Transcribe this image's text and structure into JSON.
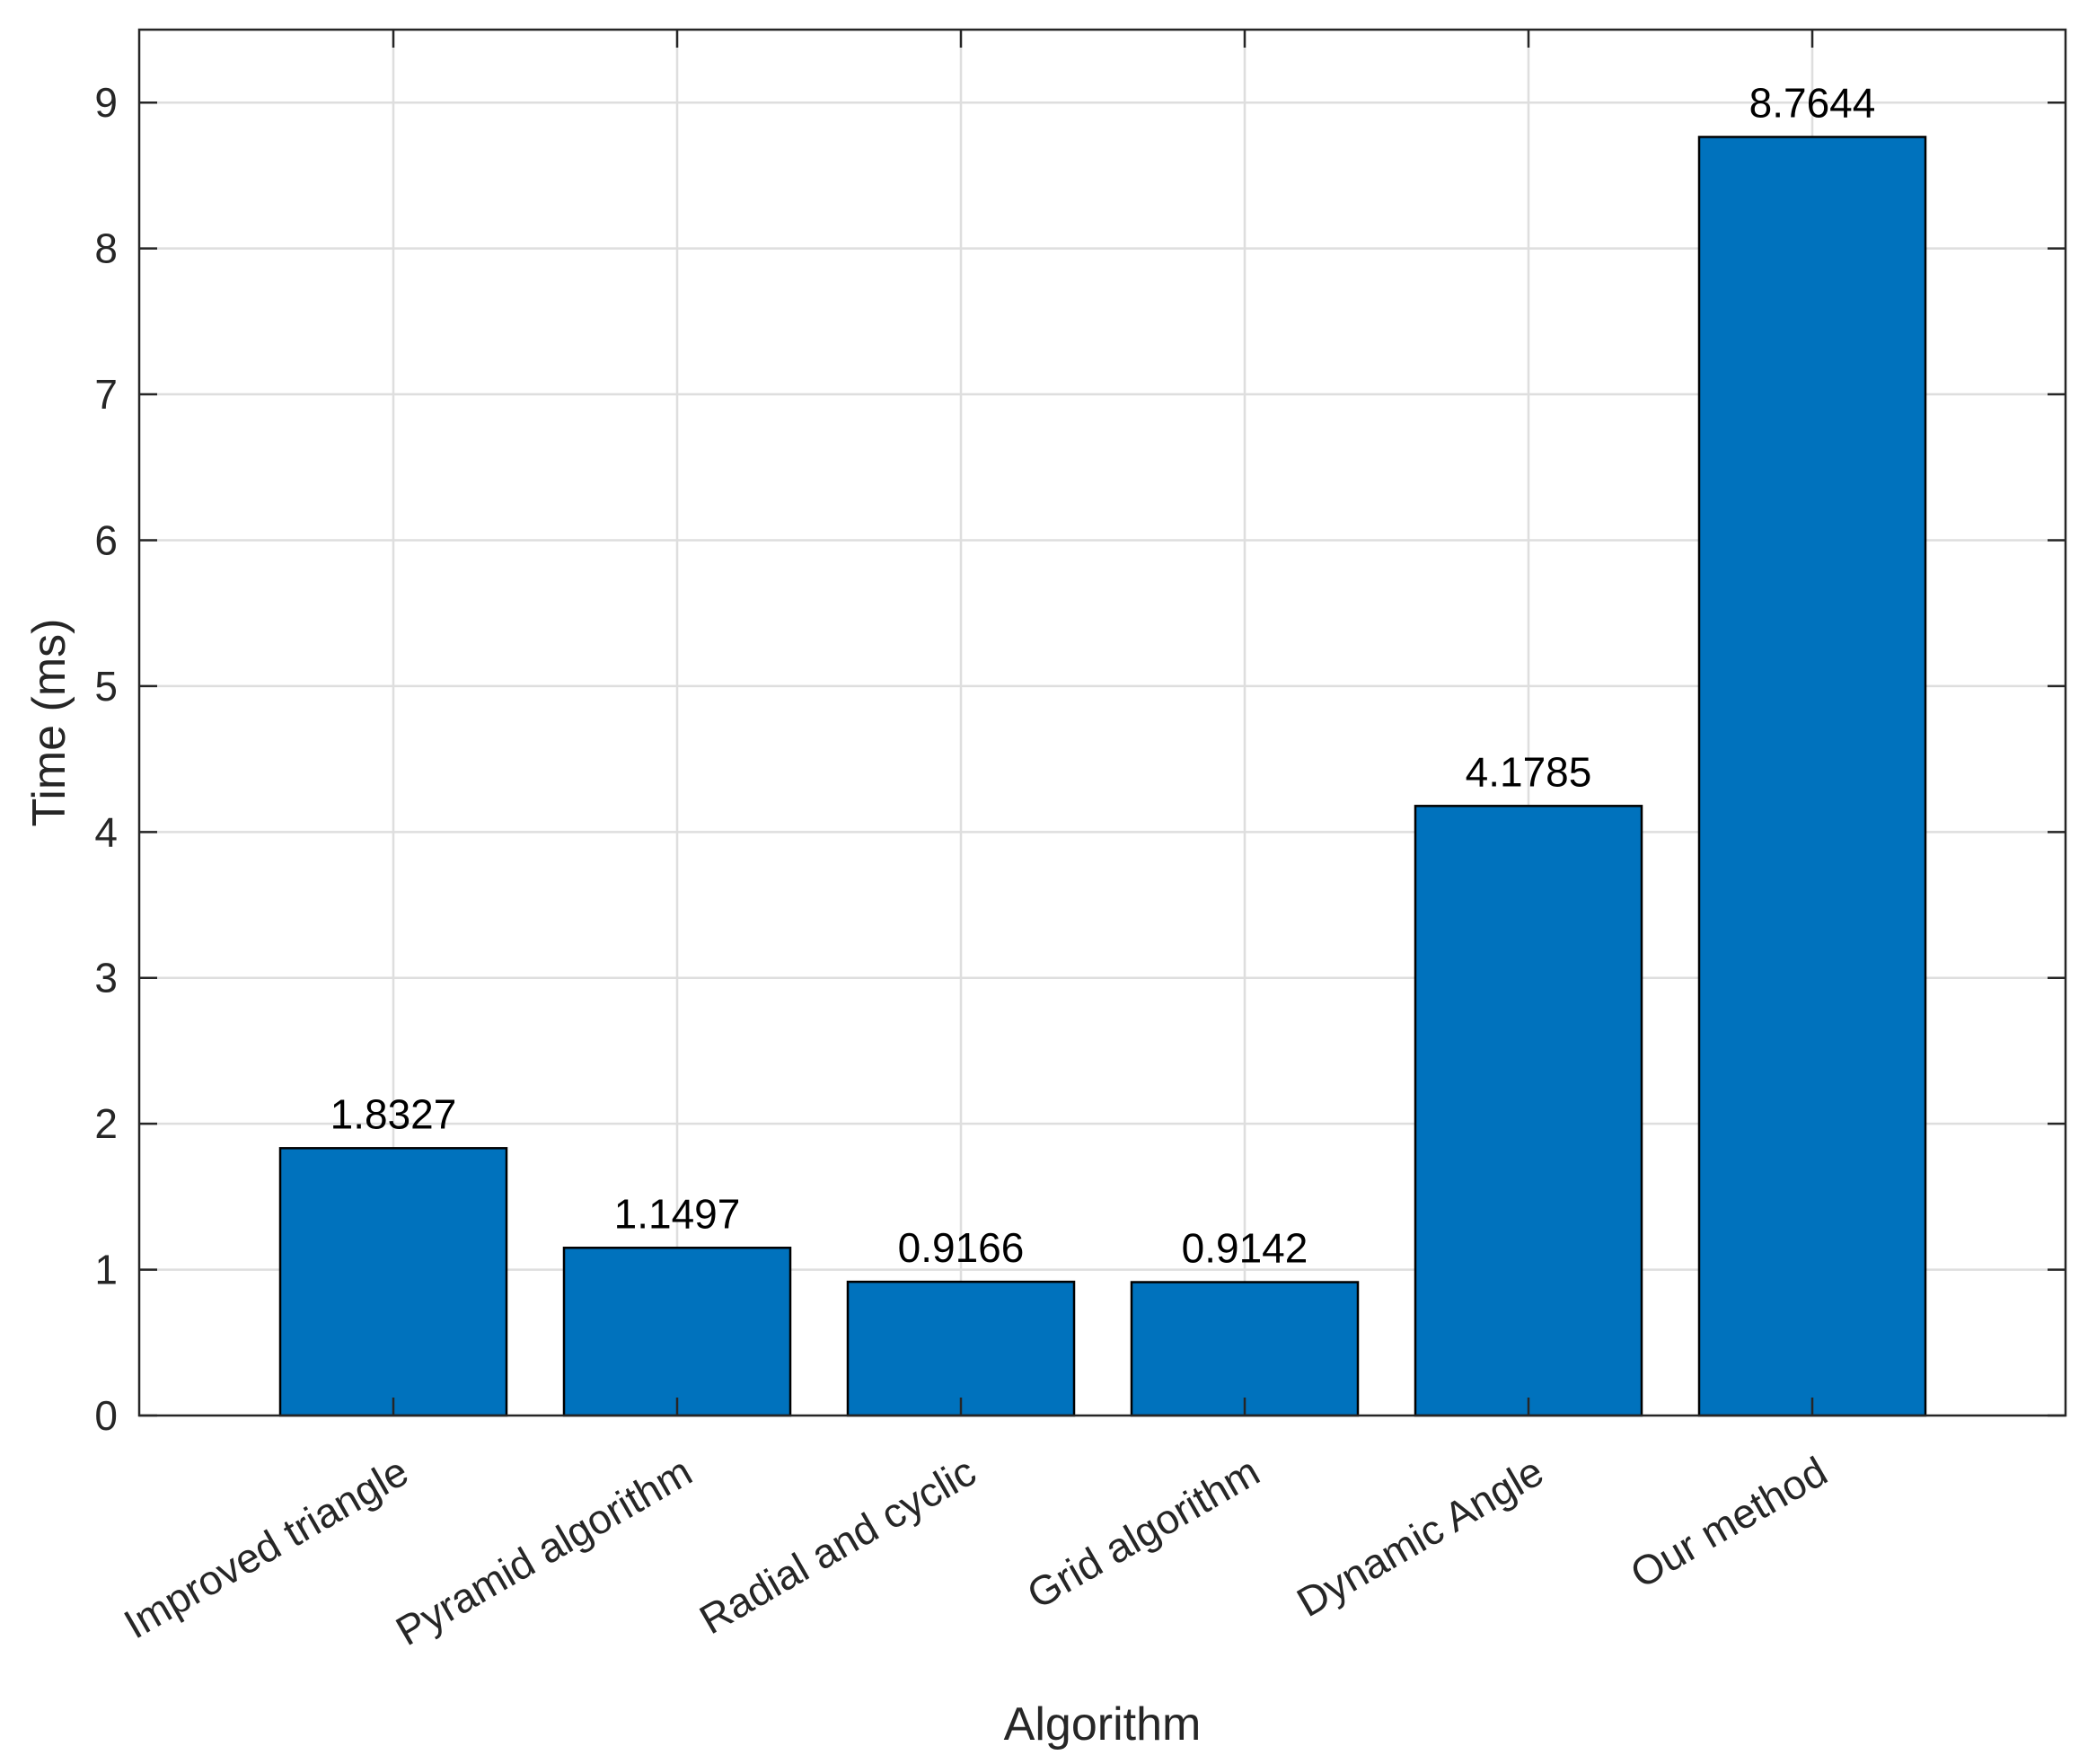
{
  "colors": {
    "bar_fill": "#0072BD",
    "bar_stroke": "#000000",
    "axis": "#262626",
    "grid": "#dedede",
    "background": "#ffffff"
  },
  "chart_data": {
    "type": "bar",
    "title": "",
    "xlabel": "Algorithm",
    "ylabel": "Time (ms)",
    "categories": [
      "Improved triangle",
      "Pyramid algorithm",
      "Radial and cyclic",
      "Grid algorithm",
      "Dynamic Angle",
      "Our method"
    ],
    "values": [
      1.8327,
      1.1497,
      0.9166,
      0.9142,
      4.1785,
      8.7644
    ],
    "data_labels": [
      "1.8327",
      "1.1497",
      "0.9166",
      "0.9142",
      "4.1785",
      "8.7644"
    ],
    "ylim": [
      0,
      9.5
    ],
    "yticks": [
      0,
      1,
      2,
      3,
      4,
      5,
      6,
      7,
      8,
      9
    ],
    "grid": true,
    "legend": "none",
    "xtick_rotation": "30 degrees"
  }
}
